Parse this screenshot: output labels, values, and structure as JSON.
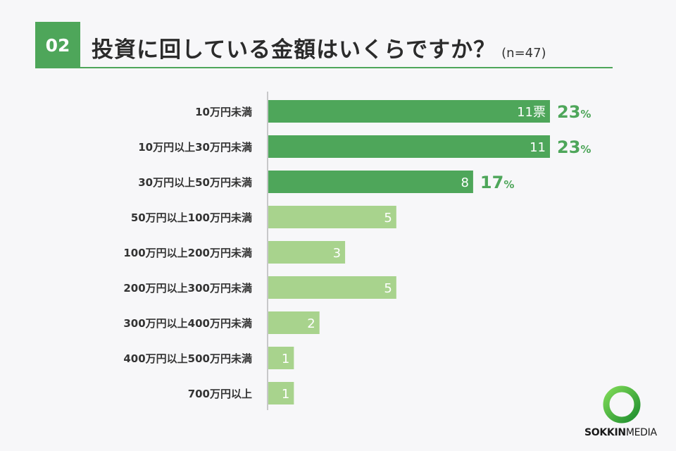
{
  "header": {
    "number": "02",
    "title": "投資に回している金額はいくらですか？",
    "sample": "(n=47)"
  },
  "logo": {
    "brand_bold": "SOKKIN",
    "brand_light": "MEDIA"
  },
  "colors": {
    "accent": "#4ea65a",
    "bar_light": "#a8d38d",
    "percent_text": "#4ea65a"
  },
  "chart_data": {
    "type": "bar",
    "orientation": "horizontal",
    "categories": [
      "10万円未満",
      "10万円以上30万円未満",
      "30万円以上50万円未満",
      "50万円以上100万円未満",
      "100万円以上200万円未満",
      "200万円以上300万円未満",
      "300万円以上400万円未満",
      "400万円以上500万円未満",
      "700万円以上"
    ],
    "values": [
      11,
      11,
      8,
      5,
      3,
      5,
      2,
      1,
      1
    ],
    "value_labels": [
      "11票",
      "11",
      "8",
      "5",
      "3",
      "5",
      "2",
      "1",
      "1"
    ],
    "percent_labels": [
      "23",
      "23",
      "17",
      "",
      "",
      "",
      "",
      "",
      ""
    ],
    "percent_unit": "%",
    "highlight_count": 3,
    "xlim": [
      0,
      11
    ]
  }
}
